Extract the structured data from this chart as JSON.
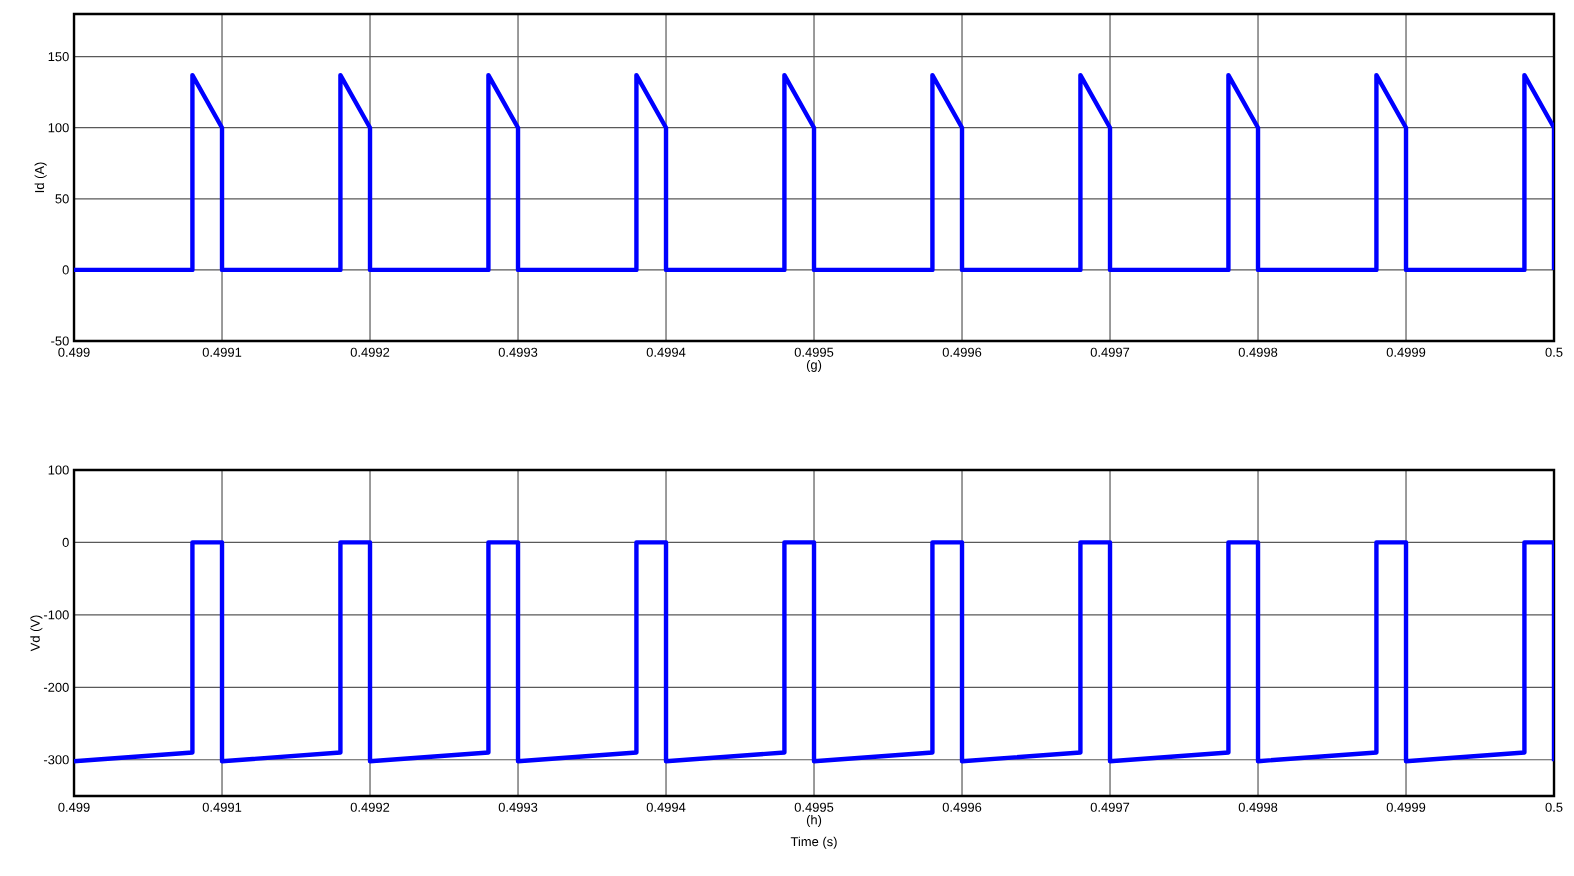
{
  "chart_data": [
    {
      "type": "line",
      "xlabel": "(g)",
      "ylabel": "Id (A)",
      "xlim": [
        0.499,
        0.5
      ],
      "ylim": [
        -50,
        180
      ],
      "xticks": [
        0.499,
        0.4991,
        0.4992,
        0.4993,
        0.4994,
        0.4995,
        0.4996,
        0.4997,
        0.4998,
        0.4999,
        0.5
      ],
      "yticks": [
        -50,
        0,
        50,
        100,
        150
      ],
      "grid": true,
      "series": [
        {
          "color": "#0000ff",
          "x": [
            0.499,
            0.49908,
            0.49908,
            0.4991,
            0.4991,
            0.49918,
            0.49918,
            0.4992,
            0.4992,
            0.49928,
            0.49928,
            0.4993,
            0.4993,
            0.49938,
            0.49938,
            0.4994,
            0.4994,
            0.49948,
            0.49948,
            0.4995,
            0.4995,
            0.49958,
            0.49958,
            0.4996,
            0.4996,
            0.49968,
            0.49968,
            0.4997,
            0.4997,
            0.49978,
            0.49978,
            0.4998,
            0.4998,
            0.49988,
            0.49988,
            0.4999,
            0.4999,
            0.49998,
            0.49998,
            0.5,
            0.5
          ],
          "values": [
            0,
            0,
            137,
            100,
            0,
            0,
            137,
            100,
            0,
            0,
            137,
            100,
            0,
            0,
            137,
            100,
            0,
            0,
            137,
            100,
            0,
            0,
            137,
            100,
            0,
            0,
            137,
            100,
            0,
            0,
            137,
            100,
            0,
            0,
            137,
            100,
            0,
            0,
            137,
            100,
            0
          ]
        }
      ]
    },
    {
      "type": "line",
      "xlabel": "(h)",
      "ylabel": "Vd (V)",
      "annotations": [
        "Time (s)"
      ],
      "xlim": [
        0.499,
        0.5
      ],
      "ylim": [
        -350,
        100
      ],
      "xticks": [
        0.499,
        0.4991,
        0.4992,
        0.4993,
        0.4994,
        0.4995,
        0.4996,
        0.4997,
        0.4998,
        0.4999,
        0.5
      ],
      "yticks": [
        -300,
        -200,
        -100,
        0,
        100
      ],
      "grid": true,
      "series": [
        {
          "color": "#0000ff",
          "x": [
            0.499,
            0.49908,
            0.49908,
            0.4991,
            0.4991,
            0.49918,
            0.49918,
            0.4992,
            0.4992,
            0.49928,
            0.49928,
            0.4993,
            0.4993,
            0.49938,
            0.49938,
            0.4994,
            0.4994,
            0.49948,
            0.49948,
            0.4995,
            0.4995,
            0.49958,
            0.49958,
            0.4996,
            0.4996,
            0.49968,
            0.49968,
            0.4997,
            0.4997,
            0.49978,
            0.49978,
            0.4998,
            0.4998,
            0.49988,
            0.49988,
            0.4999,
            0.4999,
            0.49998,
            0.49998,
            0.5,
            0.5
          ],
          "values": [
            -302,
            -290,
            0,
            0,
            -302,
            -290,
            0,
            0,
            -302,
            -290,
            0,
            0,
            -302,
            -290,
            0,
            0,
            -302,
            -290,
            0,
            0,
            -302,
            -290,
            0,
            0,
            -302,
            -290,
            0,
            0,
            -302,
            -290,
            0,
            0,
            -302,
            -290,
            0,
            0,
            -302,
            -290,
            0,
            0,
            -302
          ]
        }
      ]
    }
  ]
}
